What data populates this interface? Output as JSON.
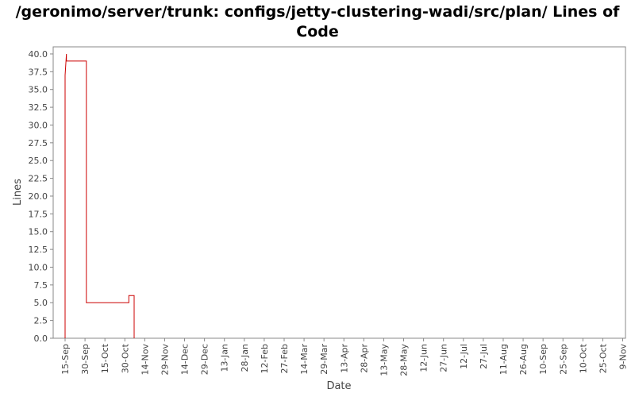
{
  "chart_data": {
    "type": "line",
    "title": "/geronimo/server/trunk: configs/jetty-clustering-wadi/src/plan/ Lines of Code",
    "xlabel": "Date",
    "ylabel": "Lines",
    "ylim": [
      0,
      41
    ],
    "yticks": [
      "0.0",
      "2.5",
      "5.0",
      "7.5",
      "10.0",
      "12.5",
      "15.0",
      "17.5",
      "20.0",
      "22.5",
      "25.0",
      "27.5",
      "30.0",
      "32.5",
      "35.0",
      "37.5",
      "40.0"
    ],
    "xticks": [
      "15-Sep",
      "30-Sep",
      "15-Oct",
      "30-Oct",
      "14-Nov",
      "29-Nov",
      "14-Dec",
      "29-Dec",
      "13-Jan",
      "28-Jan",
      "12-Feb",
      "27-Feb",
      "14-Mar",
      "29-Mar",
      "13-Apr",
      "28-Apr",
      "13-May",
      "28-May",
      "12-Jun",
      "27-Jun",
      "12-Jul",
      "27-Jul",
      "11-Aug",
      "26-Aug",
      "10-Sep",
      "25-Sep",
      "10-Oct",
      "25-Oct",
      "9-Nov"
    ],
    "grid": false,
    "series": [
      {
        "color": "#cc0000",
        "step": true,
        "points": [
          [
            "15-Sep",
            0
          ],
          [
            "15-Sep",
            37
          ],
          [
            "16-Sep",
            40
          ],
          [
            "16-Sep",
            39
          ],
          [
            "1-Oct",
            39
          ],
          [
            "1-Oct",
            5
          ],
          [
            "2-Nov",
            5
          ],
          [
            "2-Nov",
            6
          ],
          [
            "6-Nov",
            6
          ],
          [
            "6-Nov",
            0
          ]
        ]
      }
    ]
  }
}
